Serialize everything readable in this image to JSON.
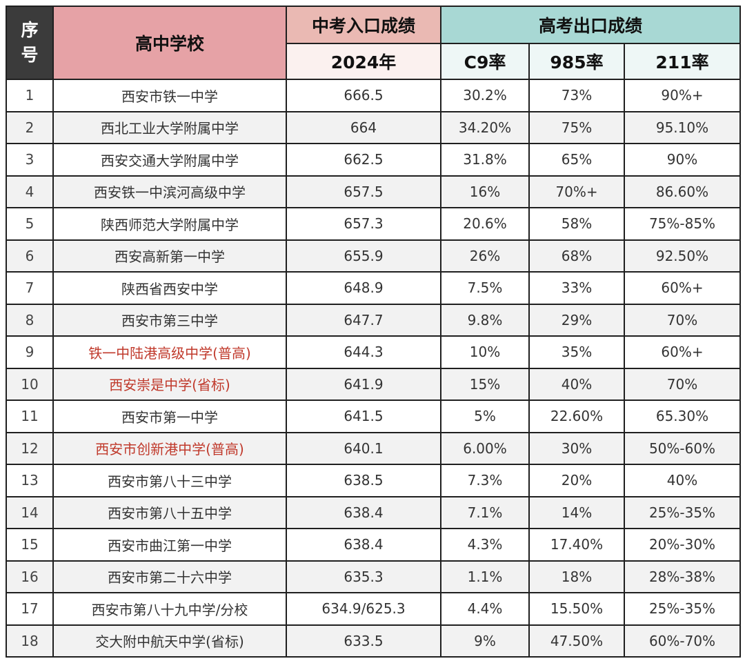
{
  "headers": {
    "index": "序号",
    "school": "高中学校",
    "entry_group": "中考入口成绩",
    "exit_group": "高考出口成绩",
    "year": "2024年",
    "c9": "C9率",
    "r985": "985率",
    "r211": "211率"
  },
  "colors": {
    "highlight_school_text": "#c0392b",
    "index_header_bg": "#3b3b3b",
    "school_header_bg": "#e6a2a6",
    "entry_header_bg": "#eab9b3",
    "exit_header_bg": "#a8d8d4"
  },
  "rows": [
    {
      "index": "1",
      "school": "西安市铁一中学",
      "score": "666.5",
      "c9": "30.2%",
      "r985": "73%",
      "r211": "90%+",
      "highlight": false
    },
    {
      "index": "2",
      "school": "西北工业大学附属中学",
      "score": "664",
      "c9": "34.20%",
      "r985": "75%",
      "r211": "95.10%",
      "highlight": false
    },
    {
      "index": "3",
      "school": "西安交通大学附属中学",
      "score": "662.5",
      "c9": "31.8%",
      "r985": "65%",
      "r211": "90%",
      "highlight": false
    },
    {
      "index": "4",
      "school": "西安铁一中滨河高级中学",
      "score": "657.5",
      "c9": "16%",
      "r985": "70%+",
      "r211": "86.60%",
      "highlight": false
    },
    {
      "index": "5",
      "school": "陕西师范大学附属中学",
      "score": "657.3",
      "c9": "20.6%",
      "r985": "58%",
      "r211": "75%-85%",
      "highlight": false
    },
    {
      "index": "6",
      "school": "西安高新第一中学",
      "score": "655.9",
      "c9": "26%",
      "r985": "68%",
      "r211": "92.50%",
      "highlight": false
    },
    {
      "index": "7",
      "school": "陕西省西安中学",
      "score": "648.9",
      "c9": "7.5%",
      "r985": "33%",
      "r211": "60%+",
      "highlight": false
    },
    {
      "index": "8",
      "school": "西安市第三中学",
      "score": "647.7",
      "c9": "9.8%",
      "r985": "29%",
      "r211": "70%",
      "highlight": false
    },
    {
      "index": "9",
      "school": "铁一中陆港高级中学(普高)",
      "score": "644.3",
      "c9": "10%",
      "r985": "35%",
      "r211": "60%+",
      "highlight": true
    },
    {
      "index": "10",
      "school": "西安崇是中学(省标)",
      "score": "641.9",
      "c9": "15%",
      "r985": "40%",
      "r211": "70%",
      "highlight": true
    },
    {
      "index": "11",
      "school": "西安市第一中学",
      "score": "641.5",
      "c9": "5%",
      "r985": "22.60%",
      "r211": "65.30%",
      "highlight": false
    },
    {
      "index": "12",
      "school": "西安市创新港中学(普高)",
      "score": "640.1",
      "c9": "6.00%",
      "r985": "30%",
      "r211": "50%-60%",
      "highlight": true
    },
    {
      "index": "13",
      "school": "西安市第八十三中学",
      "score": "638.5",
      "c9": "7.3%",
      "r985": "20%",
      "r211": "40%",
      "highlight": false
    },
    {
      "index": "14",
      "school": "西安市第八十五中学",
      "score": "638.4",
      "c9": "7.1%",
      "r985": "14%",
      "r211": "25%-35%",
      "highlight": false
    },
    {
      "index": "15",
      "school": "西安市曲江第一中学",
      "score": "638.4",
      "c9": "4.3%",
      "r985": "17.40%",
      "r211": "20%-30%",
      "highlight": false
    },
    {
      "index": "16",
      "school": "西安市第二十六中学",
      "score": "635.3",
      "c9": "1.1%",
      "r985": "18%",
      "r211": "28%-38%",
      "highlight": false
    },
    {
      "index": "17",
      "school": "西安市第八十九中学/分校",
      "score": "634.9/625.3",
      "c9": "4.4%",
      "r985": "15.50%",
      "r211": "25%-35%",
      "highlight": false
    },
    {
      "index": "18",
      "school": "交大附中航天中学(省标)",
      "score": "633.5",
      "c9": "9%",
      "r985": "47.50%",
      "r211": "60%-70%",
      "highlight": false
    }
  ]
}
